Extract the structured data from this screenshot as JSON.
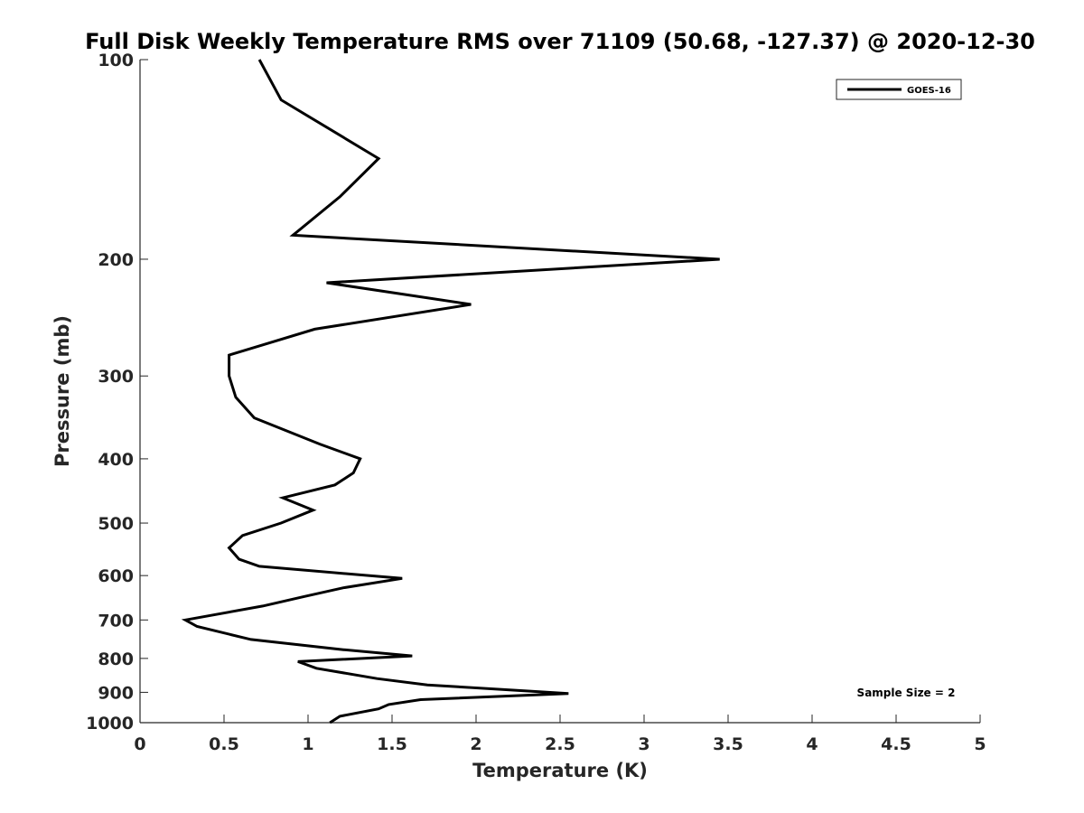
{
  "chart_data": {
    "type": "line",
    "title": "Full Disk Weekly Temperature RMS over 71109 (50.68, -127.37) @ 2020-12-30",
    "xlabel": "Temperature (K)",
    "ylabel": "Pressure (mb)",
    "xlim": [
      0,
      5
    ],
    "ylim": [
      100,
      1000
    ],
    "y_scale": "log",
    "y_reversed": true,
    "x_ticks": [
      "0",
      "0.5",
      "1",
      "1.5",
      "2",
      "2.5",
      "3",
      "3.5",
      "4",
      "4.5",
      "5"
    ],
    "y_ticks": [
      "100",
      "200",
      "300",
      "400",
      "500",
      "600",
      "700",
      "800",
      "900",
      "1000"
    ],
    "grid": false,
    "legend_position": "top-right",
    "annotation": "Sample Size = 2",
    "line_color": "#000000",
    "series": [
      {
        "name": "GOES-16",
        "x": [
          0.71,
          0.84,
          1.42,
          1.19,
          0.91,
          3.45,
          1.11,
          1.97,
          1.04,
          0.53,
          0.53,
          0.57,
          0.68,
          1.07,
          1.31,
          1.27,
          1.16,
          0.85,
          1.03,
          0.84,
          0.61,
          0.53,
          0.59,
          0.71,
          1.56,
          1.21,
          0.97,
          0.73,
          0.27,
          0.34,
          0.66,
          1.21,
          1.62,
          0.94,
          1.05,
          1.41,
          1.71,
          2.31,
          2.55,
          1.67,
          1.48,
          1.42,
          1.19,
          1.13
        ],
        "y": [
          100,
          115,
          141,
          161,
          184,
          200,
          217,
          234,
          255,
          279,
          300,
          323,
          347,
          380,
          400,
          420,
          438,
          458,
          478,
          500,
          522,
          545,
          567,
          581,
          606,
          626,
          646,
          667,
          700,
          716,
          749,
          776,
          793,
          809,
          828,
          858,
          877,
          896,
          904,
          923,
          939,
          953,
          978,
          1000
        ]
      }
    ]
  }
}
